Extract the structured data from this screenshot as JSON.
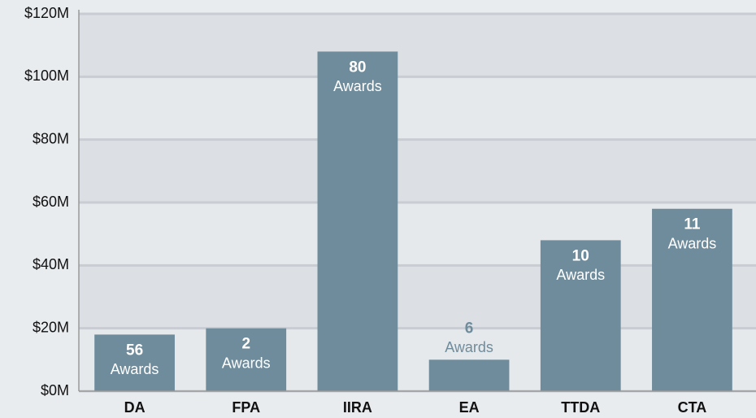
{
  "chart_data": {
    "type": "bar",
    "categories": [
      "DA",
      "FPA",
      "IIRA",
      "EA",
      "TTDA",
      "CTA"
    ],
    "values": [
      18,
      20,
      108,
      10,
      48,
      58
    ],
    "award_counts": [
      56,
      2,
      80,
      6,
      10,
      11
    ],
    "award_label": "Awards",
    "color": "#6f8c9c",
    "ylim": [
      0,
      120
    ],
    "yticks": [
      {
        "value": 0,
        "label": "$0M"
      },
      {
        "value": 20,
        "label": "$20M"
      },
      {
        "value": 40,
        "label": "$40M"
      },
      {
        "value": 60,
        "label": "$60M"
      },
      {
        "value": 80,
        "label": "$80M"
      },
      {
        "value": 100,
        "label": "$100M"
      },
      {
        "value": 120,
        "label": "$120M"
      }
    ],
    "grid": true
  }
}
